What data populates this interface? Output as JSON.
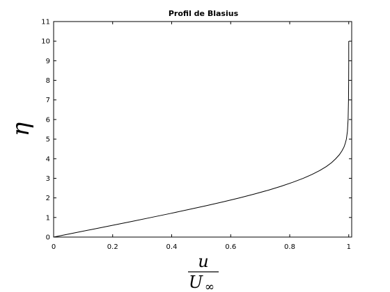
{
  "chart_data": {
    "type": "line",
    "title": "Profil de Blasius",
    "xlabel": {
      "numerator": "u",
      "denominator": "U",
      "subscript": "∞"
    },
    "ylabel": "η",
    "xlim": [
      0,
      1.01
    ],
    "ylim": [
      0,
      11
    ],
    "xticks": [
      0,
      0.2,
      0.4,
      0.6,
      0.8,
      1
    ],
    "xtick_labels": [
      "0",
      "0.2",
      "0.4",
      "0.6",
      "0.8",
      "1"
    ],
    "yticks": [
      0,
      1,
      2,
      3,
      4,
      5,
      6,
      7,
      8,
      9,
      10,
      11
    ],
    "ytick_labels": [
      "0",
      "1",
      "2",
      "3",
      "4",
      "5",
      "6",
      "7",
      "8",
      "9",
      "10",
      "11"
    ],
    "grid": false,
    "line_color": "#000000",
    "series": [
      {
        "x": [
          0,
          0.066,
          0.133,
          0.199,
          0.265,
          0.33,
          0.394,
          0.456,
          0.517,
          0.575,
          0.63,
          0.681,
          0.729,
          0.772,
          0.811,
          0.846,
          0.876,
          0.902,
          0.924,
          0.942,
          0.956,
          0.968,
          0.977,
          0.984,
          0.9885,
          0.992,
          0.9955,
          0.9978,
          0.9992,
          0.9997,
          1.0,
          1.0,
          1.0
        ],
        "y": [
          0,
          0.2,
          0.4,
          0.6,
          0.8,
          1.0,
          1.2,
          1.4,
          1.6,
          1.8,
          2.0,
          2.2,
          2.4,
          2.6,
          2.8,
          3.0,
          3.2,
          3.4,
          3.6,
          3.8,
          4.0,
          4.2,
          4.4,
          4.6,
          4.8,
          5.0,
          5.4,
          6.0,
          7.0,
          8.0,
          9.0,
          10.0,
          10.0
        ]
      }
    ]
  }
}
